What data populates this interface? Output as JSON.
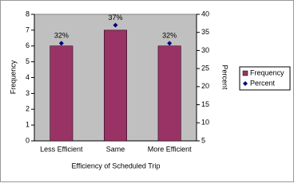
{
  "chart_data": {
    "type": "bar",
    "categories": [
      "Less Efficient",
      "Same",
      "More Efficient"
    ],
    "series": [
      {
        "name": "Frequency",
        "color": "#993366",
        "values": [
          6,
          7,
          6
        ]
      },
      {
        "name": "Percent",
        "color": "#000080",
        "type": "scatter",
        "axis": "y2",
        "values": [
          32,
          37,
          32
        ],
        "value_labels": [
          "32%",
          "37%",
          "32%"
        ]
      }
    ],
    "xlabel": "Efficiency of Scheduled Trip",
    "ylabel": "Frequency",
    "y2label": "Percent",
    "ylim": [
      0,
      8
    ],
    "yticks": [
      0,
      1,
      2,
      3,
      4,
      5,
      6,
      7,
      8
    ],
    "y2lim": [
      5,
      40
    ],
    "y2ticks": [
      5,
      10,
      15,
      20,
      25,
      30,
      35,
      40
    ],
    "legend": "right",
    "plot_background": "#c0c0c0"
  }
}
